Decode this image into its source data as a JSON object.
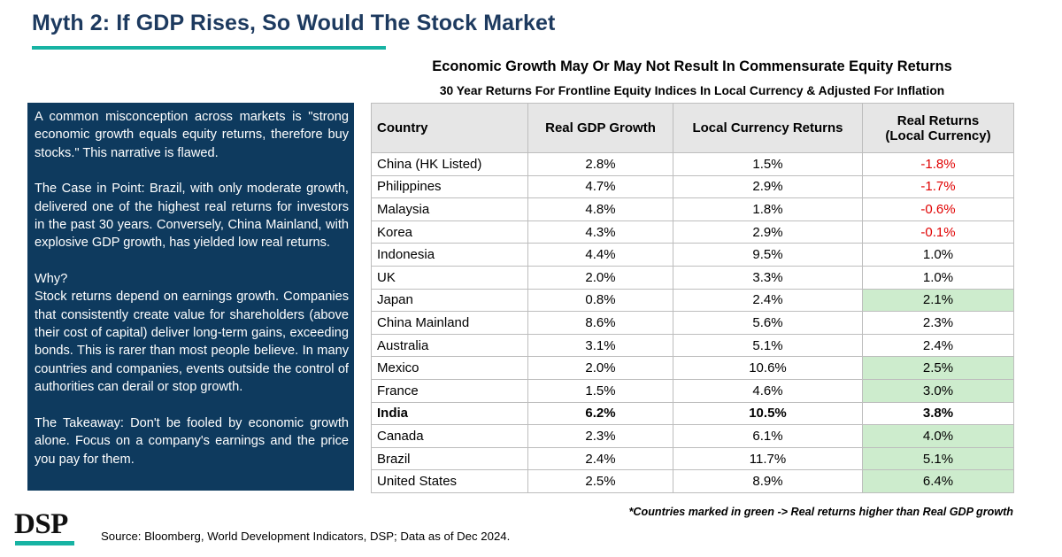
{
  "title": "Myth 2: If GDP Rises, So Would The Stock Market",
  "sidebar": {
    "paragraphs": [
      "A common misconception across markets is \"strong economic growth equals equity returns, therefore buy stocks.\" This narrative is flawed.",
      "The Case in Point: Brazil, with only moderate growth, delivered one of the highest real returns for investors in the past 30 years. Conversely, China Mainland, with explosive GDP growth, has yielded low real returns.",
      "Why?",
      "Stock returns depend on earnings growth. Companies that consistently create value for shareholders (above their cost of capital) deliver long-term gains, exceeding bonds. This is rarer than most people believe. In many countries and companies, events outside the control of authorities can derail or stop growth.",
      "The Takeaway: Don't be fooled by economic growth alone. Focus on a company's earnings and the price you pay for them."
    ]
  },
  "table": {
    "title": "Economic Growth May Or May Not Result In Commensurate Equity Returns",
    "subtitle": "30 Year Returns For Frontline Equity Indices In Local Currency & Adjusted For Inflation",
    "headers": [
      "Country",
      "Real GDP Growth",
      "Local Currency Returns",
      "Real Returns",
      "(Local Currency)"
    ],
    "rows": [
      {
        "country": "China (HK Listed)",
        "gdp": "2.8%",
        "local": "1.5%",
        "real": "-1.8%"
      },
      {
        "country": "Philippines",
        "gdp": "4.7%",
        "local": "2.9%",
        "real": "-1.7%"
      },
      {
        "country": "Malaysia",
        "gdp": "4.8%",
        "local": "1.8%",
        "real": "-0.6%"
      },
      {
        "country": "Korea",
        "gdp": "4.3%",
        "local": "2.9%",
        "real": "-0.1%"
      },
      {
        "country": "Indonesia",
        "gdp": "4.4%",
        "local": "9.5%",
        "real": "1.0%"
      },
      {
        "country": "UK",
        "gdp": "2.0%",
        "local": "3.3%",
        "real": "1.0%"
      },
      {
        "country": "Japan",
        "gdp": "0.8%",
        "local": "2.4%",
        "real": "2.1%"
      },
      {
        "country": "China Mainland",
        "gdp": "8.6%",
        "local": "5.6%",
        "real": "2.3%"
      },
      {
        "country": "Australia",
        "gdp": "3.1%",
        "local": "5.1%",
        "real": "2.4%"
      },
      {
        "country": "Mexico",
        "gdp": "2.0%",
        "local": "10.6%",
        "real": "2.5%"
      },
      {
        "country": "France",
        "gdp": "1.5%",
        "local": "4.6%",
        "real": "3.0%"
      },
      {
        "country": "India",
        "gdp": "6.2%",
        "local": "10.5%",
        "real": "3.8%"
      },
      {
        "country": "Canada",
        "gdp": "2.3%",
        "local": "6.1%",
        "real": "4.0%"
      },
      {
        "country": "Brazil",
        "gdp": "2.4%",
        "local": "11.7%",
        "real": "5.1%"
      },
      {
        "country": "United States",
        "gdp": "2.5%",
        "local": "8.9%",
        "real": "6.4%"
      }
    ]
  },
  "colors": {
    "negative": "#e00000",
    "highlight_green": "#cdeccd",
    "navy": "#0e3a5e",
    "teal": "#17b3a3"
  },
  "footnote": "*Countries marked in green -> Real returns higher than Real GDP growth",
  "logo": "DSP",
  "source": "Source: Bloomberg, World Development Indicators, DSP; Data as of Dec 2024."
}
